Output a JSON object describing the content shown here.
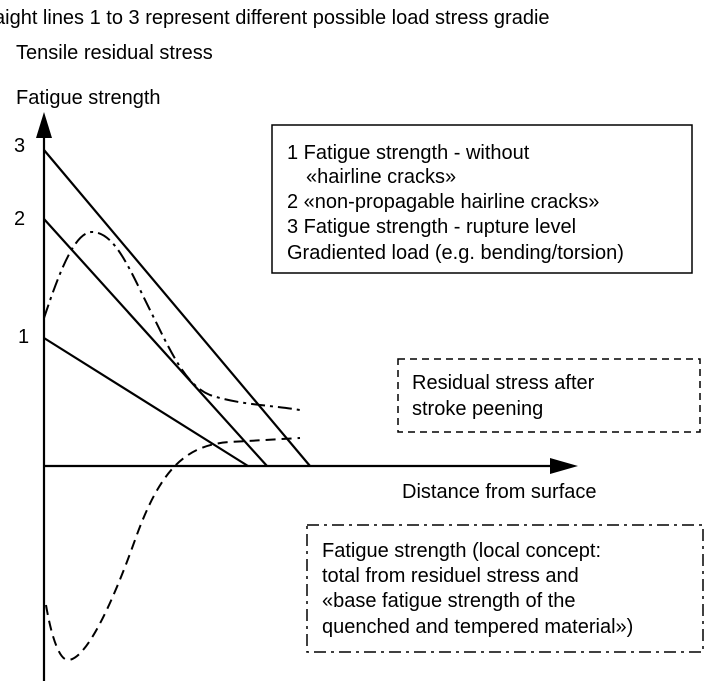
{
  "caption": "aight lines 1 to 3 represent different possible load stress gradie",
  "axes": {
    "y_label_top": "Tensile residual stress",
    "y_label": "Fatigue strength",
    "x_label": "Distance from surface",
    "y_ticks": [
      "3",
      "2",
      "1"
    ]
  },
  "legend_lines": {
    "items": [
      "1  Fatigue strength - without",
      "«hairline cracks»",
      "2  «non-propagable hairline cracks»",
      "3  Fatigue strength - rupture level",
      "Gradiented load (e.g. bending/torsion)"
    ]
  },
  "legend_residual": {
    "items": [
      "Residual stress after",
      "stroke peening"
    ]
  },
  "legend_fatigue": {
    "items": [
      "Fatigue strength (local concept:",
      "total from residuel stress and",
      "«base fatigue strength of the",
      "quenched and tempered material»)"
    ]
  },
  "line_styles": {
    "solid": "load stress gradient",
    "dashed": "residual stress",
    "dash-dot": "local fatigue strength"
  },
  "colors": {
    "ink": "#000000",
    "background": "#ffffff"
  }
}
